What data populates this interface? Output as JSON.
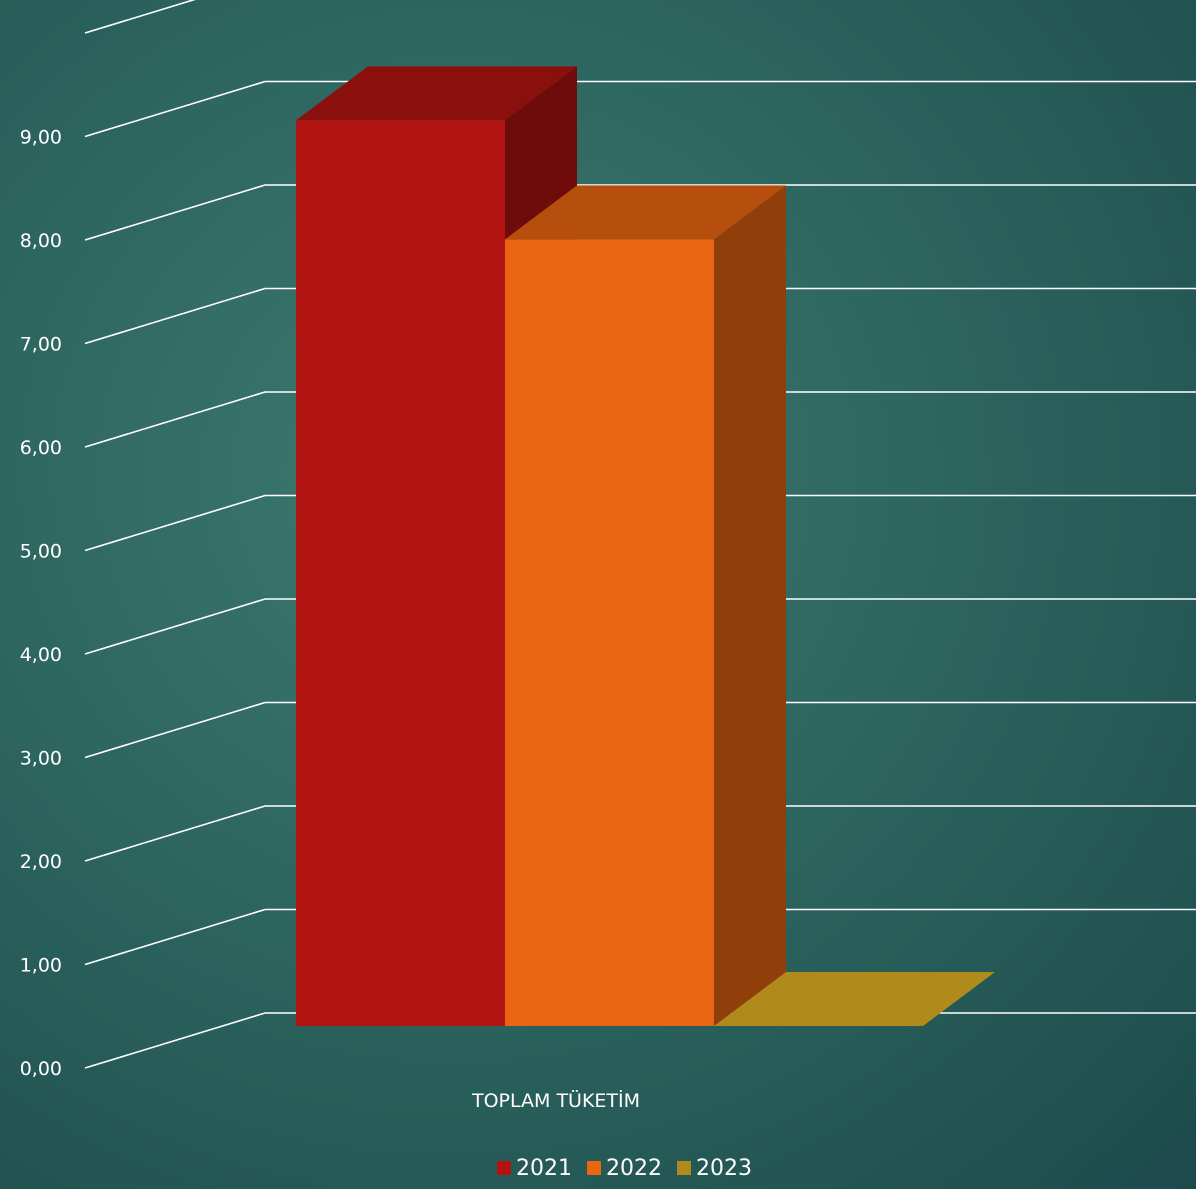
{
  "chart_data": {
    "type": "bar",
    "style": "3d-clustered-column",
    "categories": [
      "TOPLAM TÜKETİM"
    ],
    "series": [
      {
        "name": "2021",
        "values": [
          8.75
        ],
        "color": "#b11411"
      },
      {
        "name": "2022",
        "values": [
          7.6
        ],
        "color": "#e96511"
      },
      {
        "name": "2023",
        "values": [
          0
        ],
        "color": "#b08a1a"
      }
    ],
    "yticks": [
      "0,00",
      "1,00",
      "2,00",
      "3,00",
      "4,00",
      "5,00",
      "6,00",
      "7,00",
      "8,00",
      "9,00"
    ],
    "ylim": [
      0,
      10
    ],
    "grid": true,
    "legend_position": "bottom",
    "background_color": "#2f6861",
    "gridline_color": "#ffffff"
  }
}
